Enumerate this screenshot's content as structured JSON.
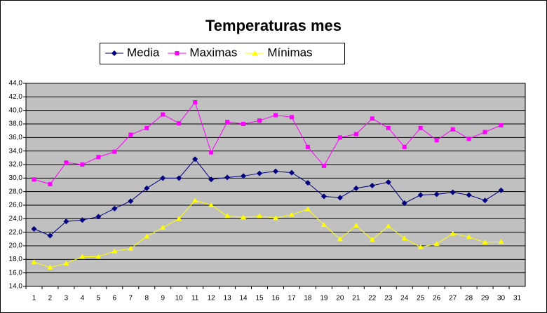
{
  "chart_data": {
    "type": "line",
    "title": "Temperaturas mes",
    "categories": [
      "1",
      "2",
      "3",
      "4",
      "5",
      "6",
      "7",
      "8",
      "9",
      "10",
      "11",
      "12",
      "13",
      "14",
      "15",
      "16",
      "17",
      "18",
      "19",
      "20",
      "21",
      "22",
      "23",
      "24",
      "25",
      "26",
      "27",
      "28",
      "29",
      "30",
      "31"
    ],
    "series": [
      {
        "name": "Media",
        "color": "#000080",
        "marker": "diamond",
        "values": [
          22.5,
          21.5,
          23.6,
          23.8,
          24.3,
          25.5,
          26.6,
          28.5,
          30.0,
          30.0,
          32.8,
          29.8,
          30.1,
          30.3,
          30.7,
          31.0,
          30.8,
          29.3,
          27.3,
          27.1,
          28.5,
          28.9,
          29.4,
          26.3,
          27.5,
          27.6,
          27.9,
          27.5,
          26.7,
          28.2,
          null
        ]
      },
      {
        "name": "Maximas",
        "color": "#FF00FF",
        "marker": "square",
        "values": [
          29.8,
          29.1,
          32.3,
          32.0,
          33.1,
          33.9,
          36.4,
          37.4,
          39.4,
          38.1,
          41.2,
          33.8,
          38.3,
          38.0,
          38.5,
          39.3,
          39.0,
          34.6,
          31.8,
          36.0,
          36.5,
          38.8,
          37.4,
          34.6,
          37.4,
          35.6,
          37.2,
          35.8,
          36.8,
          37.8,
          null
        ]
      },
      {
        "name": "Mínimas",
        "color": "#FFFF00",
        "marker": "triangle",
        "values": [
          17.6,
          16.8,
          17.4,
          18.4,
          18.4,
          19.2,
          19.6,
          21.4,
          22.7,
          24.0,
          26.7,
          26.0,
          24.4,
          24.2,
          24.4,
          24.1,
          24.6,
          25.4,
          23.1,
          21.0,
          23.0,
          20.9,
          22.9,
          21.1,
          19.8,
          20.3,
          21.8,
          21.3,
          20.5,
          20.6,
          null
        ]
      }
    ],
    "ylim": [
      14,
      44
    ],
    "yticks": [
      {
        "value": 14,
        "label": "14,0"
      },
      {
        "value": 16,
        "label": "16,0"
      },
      {
        "value": 18,
        "label": "18,0"
      },
      {
        "value": 20,
        "label": "20,0"
      },
      {
        "value": 22,
        "label": "22,0"
      },
      {
        "value": 24,
        "label": "24,0"
      },
      {
        "value": 26,
        "label": "26,0"
      },
      {
        "value": 28,
        "label": "28,0"
      },
      {
        "value": 30,
        "label": "30,0"
      },
      {
        "value": 32,
        "label": "32,0"
      },
      {
        "value": 34,
        "label": "34,0"
      },
      {
        "value": 36,
        "label": "36,0"
      },
      {
        "value": 38,
        "label": "38,0"
      },
      {
        "value": 40,
        "label": "40,0"
      },
      {
        "value": 42,
        "label": "42,0"
      },
      {
        "value": 44,
        "label": "44,0"
      }
    ],
    "grid": true,
    "legend": "top"
  }
}
